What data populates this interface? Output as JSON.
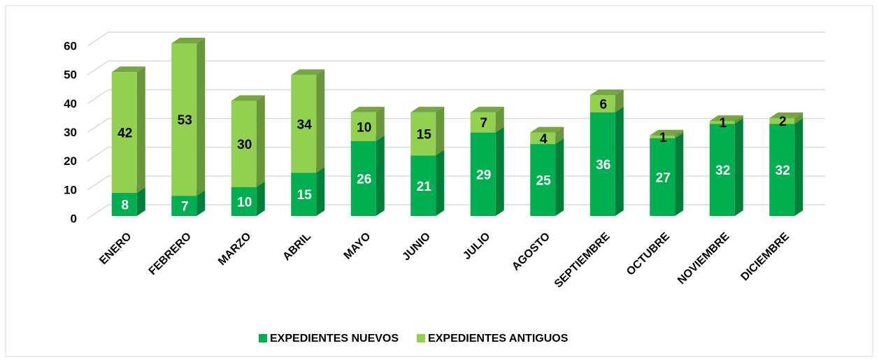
{
  "chart_data": {
    "type": "bar3d_stacked",
    "categories": [
      "ENERO",
      "FEBRERO",
      "MARZO",
      "ABRIL",
      "MAYO",
      "JUNIO",
      "JULIO",
      "AGOSTO",
      "SEPTIEMBRE",
      "OCTUBRE",
      "NOVIEMBRE",
      "DICIEMBRE"
    ],
    "series": [
      {
        "name": "EXPEDIENTES NUEVOS",
        "color": "#00b050",
        "values": [
          8,
          7,
          10,
          15,
          26,
          21,
          29,
          25,
          36,
          27,
          32,
          32
        ]
      },
      {
        "name": "EXPEDIENTES ANTIGUOS",
        "color": "#92d050",
        "values": [
          42,
          53,
          30,
          34,
          10,
          15,
          7,
          4,
          6,
          1,
          1,
          2
        ]
      }
    ],
    "ylim": [
      0,
      60
    ],
    "yticks": [
      0,
      10,
      20,
      30,
      40,
      50,
      60
    ],
    "grid": true,
    "legend": "bottom"
  }
}
